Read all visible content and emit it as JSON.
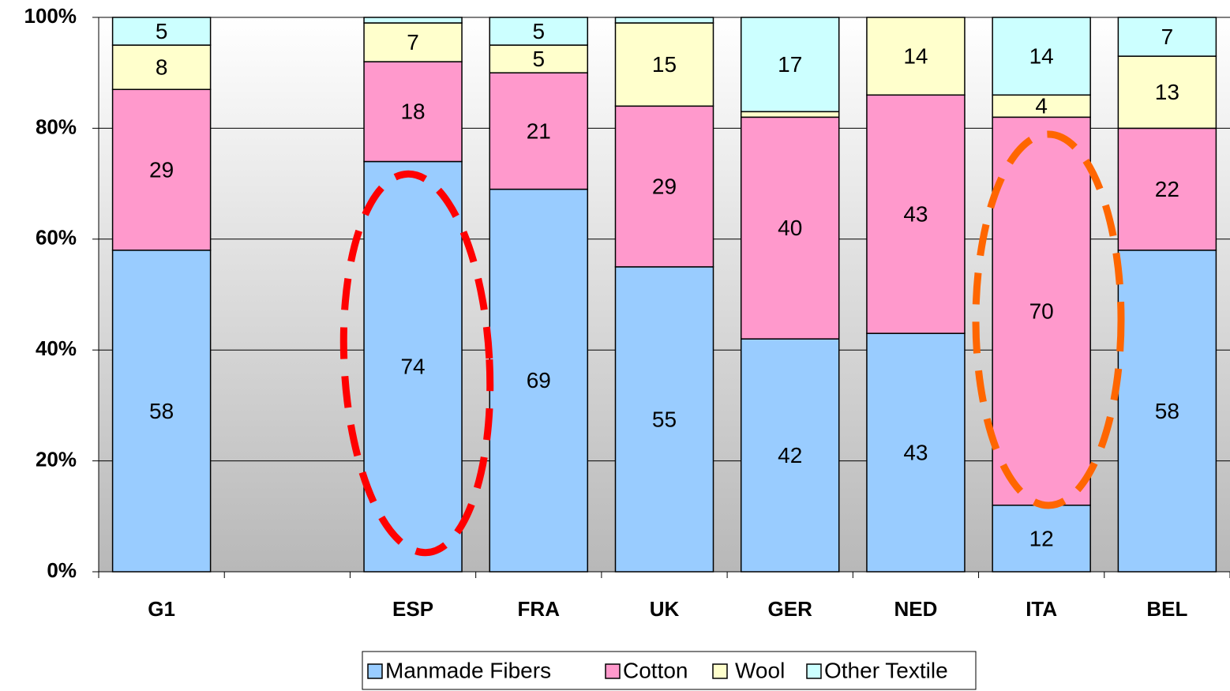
{
  "chart_data": {
    "type": "stacked_bar",
    "categories": [
      "G1",
      null,
      "ESP",
      "FRA",
      "UK",
      "GER",
      "NED",
      "ITA",
      "BEL"
    ],
    "series": [
      {
        "name": "Manmade Fibers",
        "color": "#99ccff",
        "values": [
          58,
          null,
          74,
          69,
          55,
          42,
          43,
          12,
          58
        ]
      },
      {
        "name": "Cotton",
        "color": "#ff99cc",
        "values": [
          29,
          null,
          18,
          21,
          29,
          40,
          43,
          70,
          22
        ]
      },
      {
        "name": "Wool",
        "color": "#ffffcc",
        "values": [
          8,
          null,
          7,
          5,
          15,
          1,
          14,
          4,
          13
        ]
      },
      {
        "name": "Other Textile",
        "color": "#ccffff",
        "values": [
          5,
          null,
          1,
          5,
          1,
          17,
          0,
          14,
          7
        ]
      }
    ],
    "ylim": [
      0,
      100
    ],
    "yticks": [
      {
        "value": 0,
        "label": "0%"
      },
      {
        "value": 20,
        "label": "20%"
      },
      {
        "value": 40,
        "label": "40%"
      },
      {
        "value": 60,
        "label": "60%"
      },
      {
        "value": 80,
        "label": "80%"
      },
      {
        "value": 100,
        "label": "100%"
      }
    ],
    "grid": true,
    "legend": "bottom"
  }
}
